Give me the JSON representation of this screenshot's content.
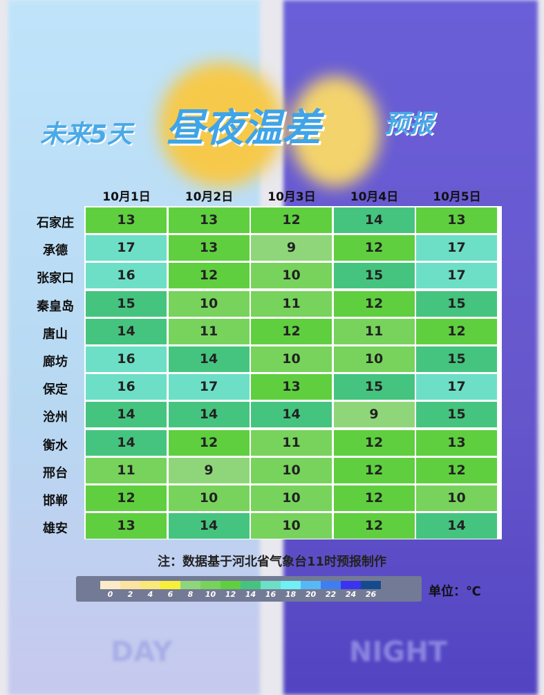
{
  "title": {
    "part1": "未来5天",
    "part2": "昼夜温差",
    "part3": "预报"
  },
  "background": {
    "day": "DAY",
    "night": "NIGHT"
  },
  "table": {
    "columns": [
      "10月1日",
      "10月2日",
      "10月3日",
      "10月4日",
      "10月5日"
    ],
    "rows": [
      {
        "city": "石家庄",
        "values": [
          13,
          13,
          12,
          14,
          13
        ]
      },
      {
        "city": "承德",
        "values": [
          17,
          13,
          9,
          12,
          17
        ]
      },
      {
        "city": "张家口",
        "values": [
          16,
          12,
          10,
          15,
          17
        ]
      },
      {
        "city": "秦皇岛",
        "values": [
          15,
          10,
          11,
          12,
          15
        ]
      },
      {
        "city": "唐山",
        "values": [
          14,
          11,
          12,
          11,
          12
        ]
      },
      {
        "city": "廊坊",
        "values": [
          16,
          14,
          10,
          10,
          15
        ]
      },
      {
        "city": "保定",
        "values": [
          16,
          17,
          13,
          15,
          17
        ]
      },
      {
        "city": "沧州",
        "values": [
          14,
          14,
          14,
          9,
          15
        ]
      },
      {
        "city": "衡水",
        "values": [
          14,
          12,
          11,
          12,
          13
        ]
      },
      {
        "city": "邢台",
        "values": [
          11,
          9,
          10,
          12,
          12
        ]
      },
      {
        "city": "邯郸",
        "values": [
          12,
          10,
          10,
          12,
          10
        ]
      },
      {
        "city": "雄安",
        "values": [
          13,
          14,
          10,
          12,
          14
        ]
      }
    ]
  },
  "note": "注：数据基于河北省气象台11时预报制作",
  "legend": {
    "ticks": [
      0,
      2,
      4,
      6,
      8,
      10,
      12,
      14,
      16,
      18,
      20,
      22,
      24,
      26
    ],
    "colors": [
      "#fdebc8",
      "#fde3a0",
      "#fbe87a",
      "#f8ef3a",
      "#8fd67a",
      "#77d35c",
      "#5fcf3f",
      "#45c47f",
      "#6ddfc6",
      "#6ff0f5",
      "#58b8f5",
      "#3f7ef0",
      "#3b33f0",
      "#164a8f"
    ],
    "unit": "单位：℃"
  }
}
